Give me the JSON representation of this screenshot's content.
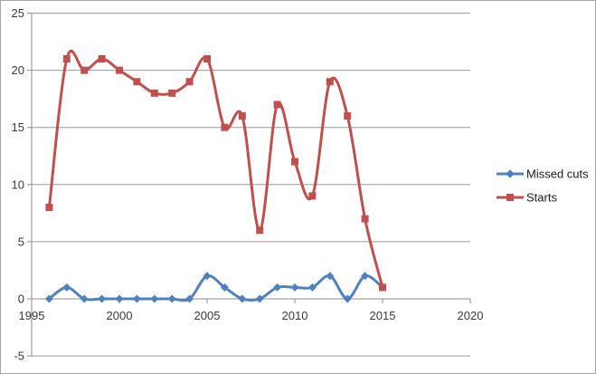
{
  "chart_data": {
    "type": "line",
    "title": "",
    "xlabel": "",
    "ylabel": "",
    "x": [
      1996,
      1997,
      1998,
      1999,
      2000,
      2001,
      2002,
      2003,
      2004,
      2005,
      2006,
      2007,
      2008,
      2009,
      2010,
      2011,
      2012,
      2013,
      2014,
      2015
    ],
    "series": [
      {
        "name": "Missed cuts",
        "color": "#4F81BD",
        "marker": "diamond",
        "values": [
          0,
          1,
          0,
          0,
          0,
          0,
          0,
          0,
          0,
          2,
          1,
          0,
          0,
          1,
          1,
          1,
          2,
          0,
          2,
          1
        ]
      },
      {
        "name": "Starts",
        "color": "#C0504D",
        "marker": "square",
        "values": [
          8,
          21,
          20,
          21,
          20,
          19,
          18,
          18,
          19,
          21,
          15,
          16,
          6,
          17,
          12,
          9,
          19,
          16,
          7,
          1
        ]
      }
    ],
    "xlim": [
      1995,
      2020
    ],
    "ylim": [
      -5,
      25
    ],
    "x_ticks": [
      1995,
      2000,
      2005,
      2010,
      2015,
      2020
    ],
    "y_ticks": [
      -5,
      0,
      5,
      10,
      15,
      20,
      25
    ],
    "grid": true,
    "smoothed_lines": true,
    "legend_position": "right",
    "colors": {
      "background": "#FFFFFF",
      "gridline": "#9B9B9B",
      "axis": "#8C8C8C",
      "tick_label": "#3A3A3A",
      "legend_text": "#1A1A1A",
      "chart_border": "#A6A6A6"
    }
  }
}
